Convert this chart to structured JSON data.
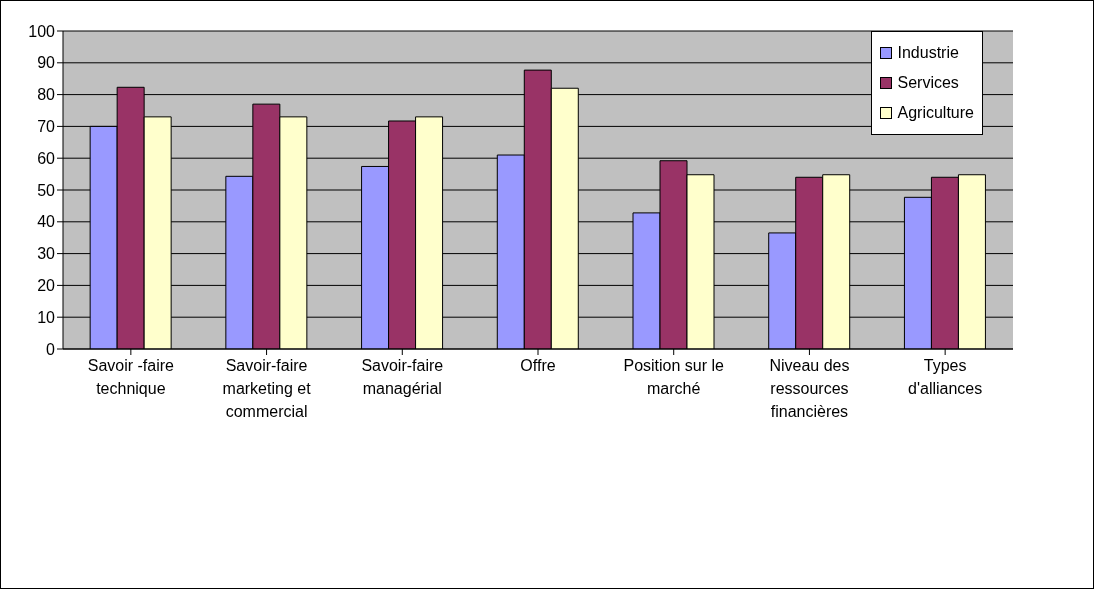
{
  "chart_data": {
    "type": "bar",
    "categories": [
      "Savoir -faire technique",
      "Savoir-faire marketing et commercial",
      "Savoir-faire managérial",
      "Offre",
      "Position sur le marché",
      "Niveau des ressources financières",
      "Types d'alliances"
    ],
    "series": [
      {
        "name": "Industrie",
        "color": "#9999ff",
        "values": [
          70,
          54.3,
          57.4,
          61,
          42.8,
          36.5,
          47.7
        ]
      },
      {
        "name": "Services",
        "color": "#993366",
        "values": [
          82.3,
          77,
          71.7,
          87.7,
          59.2,
          54,
          54
        ]
      },
      {
        "name": "Agriculture",
        "color": "#ffffcc",
        "values": [
          73,
          73,
          73,
          82,
          54.8,
          54.8,
          54.8
        ]
      }
    ],
    "ylim": [
      0,
      100
    ],
    "yticks": [
      0,
      10,
      20,
      30,
      40,
      50,
      60,
      70,
      80,
      90,
      100
    ],
    "grid": "y",
    "legend": "top right"
  }
}
